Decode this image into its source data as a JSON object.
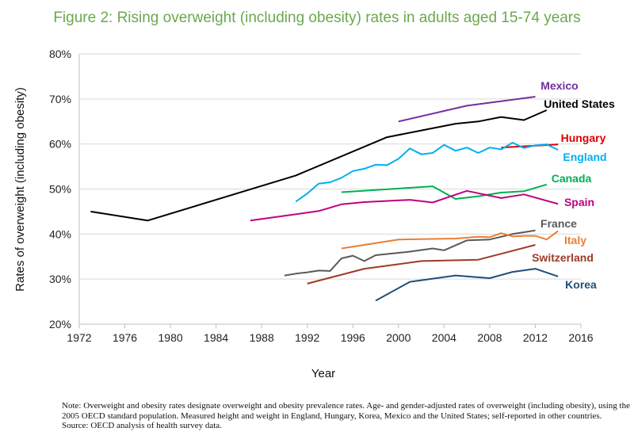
{
  "title": "Figure 2: Rising overweight (including obesity) rates in adults aged 15-74 years",
  "note": "Note: Overweight and obesity rates designate overweight and obesity prevalence rates. Age- and gender-adjusted rates of overweight (including obesity), using the 2005 OECD standard population. Measured height and weight in England, Hungary, Korea, Mexico and the United States; self-reported in other countries.",
  "source": "Source: OECD analysis of health survey data.",
  "chart_data": {
    "type": "line",
    "title": "Figure 2: Rising overweight (including obesity) rates in adults aged 15-74 years",
    "xlabel": "Year",
    "ylabel": "Rates of overweight (including obesity)",
    "xlim": [
      1972,
      2016
    ],
    "ylim": [
      20,
      80
    ],
    "xticks": [
      1972,
      1976,
      1980,
      1984,
      1988,
      1992,
      1996,
      2000,
      2004,
      2008,
      2012,
      2016
    ],
    "yticks": [
      "20%",
      "30%",
      "40%",
      "50%",
      "60%",
      "70%",
      "80%"
    ],
    "grid": "horizontal",
    "legend": "labels at line ends",
    "series": [
      {
        "name": "Mexico",
        "color": "#7030a0",
        "x": [
          2000,
          2006,
          2012
        ],
        "y": [
          65,
          68.5,
          70.5
        ]
      },
      {
        "name": "United States",
        "color": "#000000",
        "x": [
          1973,
          1978,
          1991,
          1999,
          2002,
          2005,
          2007,
          2009,
          2011,
          2013
        ],
        "y": [
          45,
          43,
          53,
          61.5,
          63,
          64.5,
          65,
          66,
          65.3,
          67.5
        ]
      },
      {
        "name": "Hungary",
        "color": "#e00000",
        "x": [
          2009,
          2014
        ],
        "y": [
          59.2,
          59.9
        ]
      },
      {
        "name": "England",
        "color": "#00b0f0",
        "x": [
          1991,
          1992,
          1993,
          1994,
          1995,
          1996,
          1997,
          1998,
          1999,
          2000,
          2001,
          2002,
          2003,
          2004,
          2005,
          2006,
          2007,
          2008,
          2009,
          2010,
          2011,
          2012,
          2013,
          2014
        ],
        "y": [
          47.2,
          49,
          51.2,
          51.5,
          52.5,
          54,
          54.5,
          55.4,
          55.3,
          56.7,
          59,
          57.7,
          58,
          59.8,
          58.5,
          59.2,
          58,
          59.2,
          58.8,
          60.3,
          59.1,
          59.7,
          59.9,
          58.7
        ]
      },
      {
        "name": "Canada",
        "color": "#00b050",
        "x": [
          1995,
          2003,
          2005,
          2007,
          2009,
          2011,
          2013
        ],
        "y": [
          49.3,
          50.6,
          47.8,
          48.4,
          49.2,
          49.5,
          51
        ]
      },
      {
        "name": "Spain",
        "color": "#c00080",
        "x": [
          1987,
          1993,
          1995,
          1997,
          2001,
          2003,
          2006,
          2009,
          2011,
          2014
        ],
        "y": [
          43,
          45.1,
          46.6,
          47.1,
          47.6,
          47,
          49.6,
          48,
          48.8,
          46.7
        ]
      },
      {
        "name": "France",
        "color": "#595959",
        "x": [
          1990,
          1991,
          1992,
          1993,
          1994,
          1995,
          1996,
          1997,
          1998,
          2001,
          2003,
          2004,
          2006,
          2008,
          2010,
          2012
        ],
        "y": [
          30.8,
          31.2,
          31.5,
          31.9,
          31.8,
          34.6,
          35.2,
          34,
          35.3,
          36.1,
          36.8,
          36.4,
          38.6,
          38.8,
          40,
          40.8
        ]
      },
      {
        "name": "Italy",
        "color": "#ed7d31",
        "x": [
          1995,
          2000,
          2005,
          2007,
          2008,
          2009,
          2010,
          2011,
          2012,
          2013,
          2014
        ],
        "y": [
          36.8,
          38.8,
          39,
          39.4,
          39.3,
          40.2,
          39.5,
          39.6,
          39.6,
          38.8,
          40.7
        ]
      },
      {
        "name": "Switzerland",
        "color": "#9e3a26",
        "x": [
          1992,
          1997,
          2002,
          2007,
          2012
        ],
        "y": [
          29,
          32.3,
          34,
          34.3,
          37.6
        ]
      },
      {
        "name": "Korea",
        "color": "#1f4e79",
        "x": [
          1998,
          2001,
          2005,
          2008,
          2010,
          2012,
          2014
        ],
        "y": [
          25.2,
          29.4,
          30.8,
          30.2,
          31.6,
          32.3,
          30.6
        ]
      }
    ]
  }
}
